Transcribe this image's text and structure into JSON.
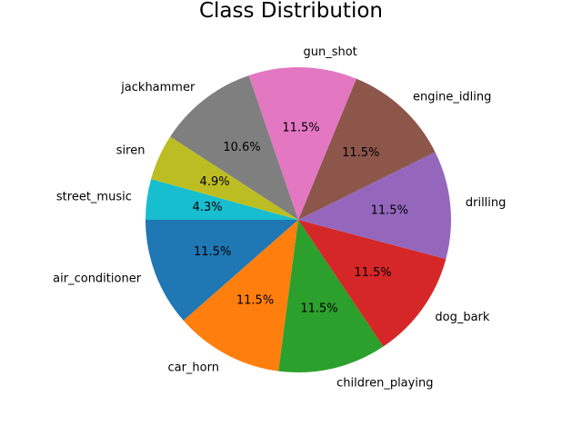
{
  "chart_data": {
    "type": "pie",
    "title": "Class Distribution",
    "start_angle_deg": 180,
    "direction": "counterclockwise",
    "slices": [
      {
        "label": "air_conditioner",
        "value": 11.5,
        "pct_label": "11.5%",
        "color": "#1f77b4"
      },
      {
        "label": "car_horn",
        "value": 11.5,
        "pct_label": "11.5%",
        "color": "#ff7f0e"
      },
      {
        "label": "children_playing",
        "value": 11.5,
        "pct_label": "11.5%",
        "color": "#2ca02c"
      },
      {
        "label": "dog_bark",
        "value": 11.5,
        "pct_label": "11.5%",
        "color": "#d62728"
      },
      {
        "label": "drilling",
        "value": 11.5,
        "pct_label": "11.5%",
        "color": "#9467bd"
      },
      {
        "label": "engine_idling",
        "value": 11.5,
        "pct_label": "11.5%",
        "color": "#8c564b"
      },
      {
        "label": "gun_shot",
        "value": 11.5,
        "pct_label": "11.5%",
        "color": "#e377c2"
      },
      {
        "label": "jackhammer",
        "value": 10.6,
        "pct_label": "10.6%",
        "color": "#7f7f7f"
      },
      {
        "label": "siren",
        "value": 4.9,
        "pct_label": "4.9%",
        "color": "#bcbd22"
      },
      {
        "label": "street_music",
        "value": 4.3,
        "pct_label": "4.3%",
        "color": "#17becf"
      }
    ]
  }
}
